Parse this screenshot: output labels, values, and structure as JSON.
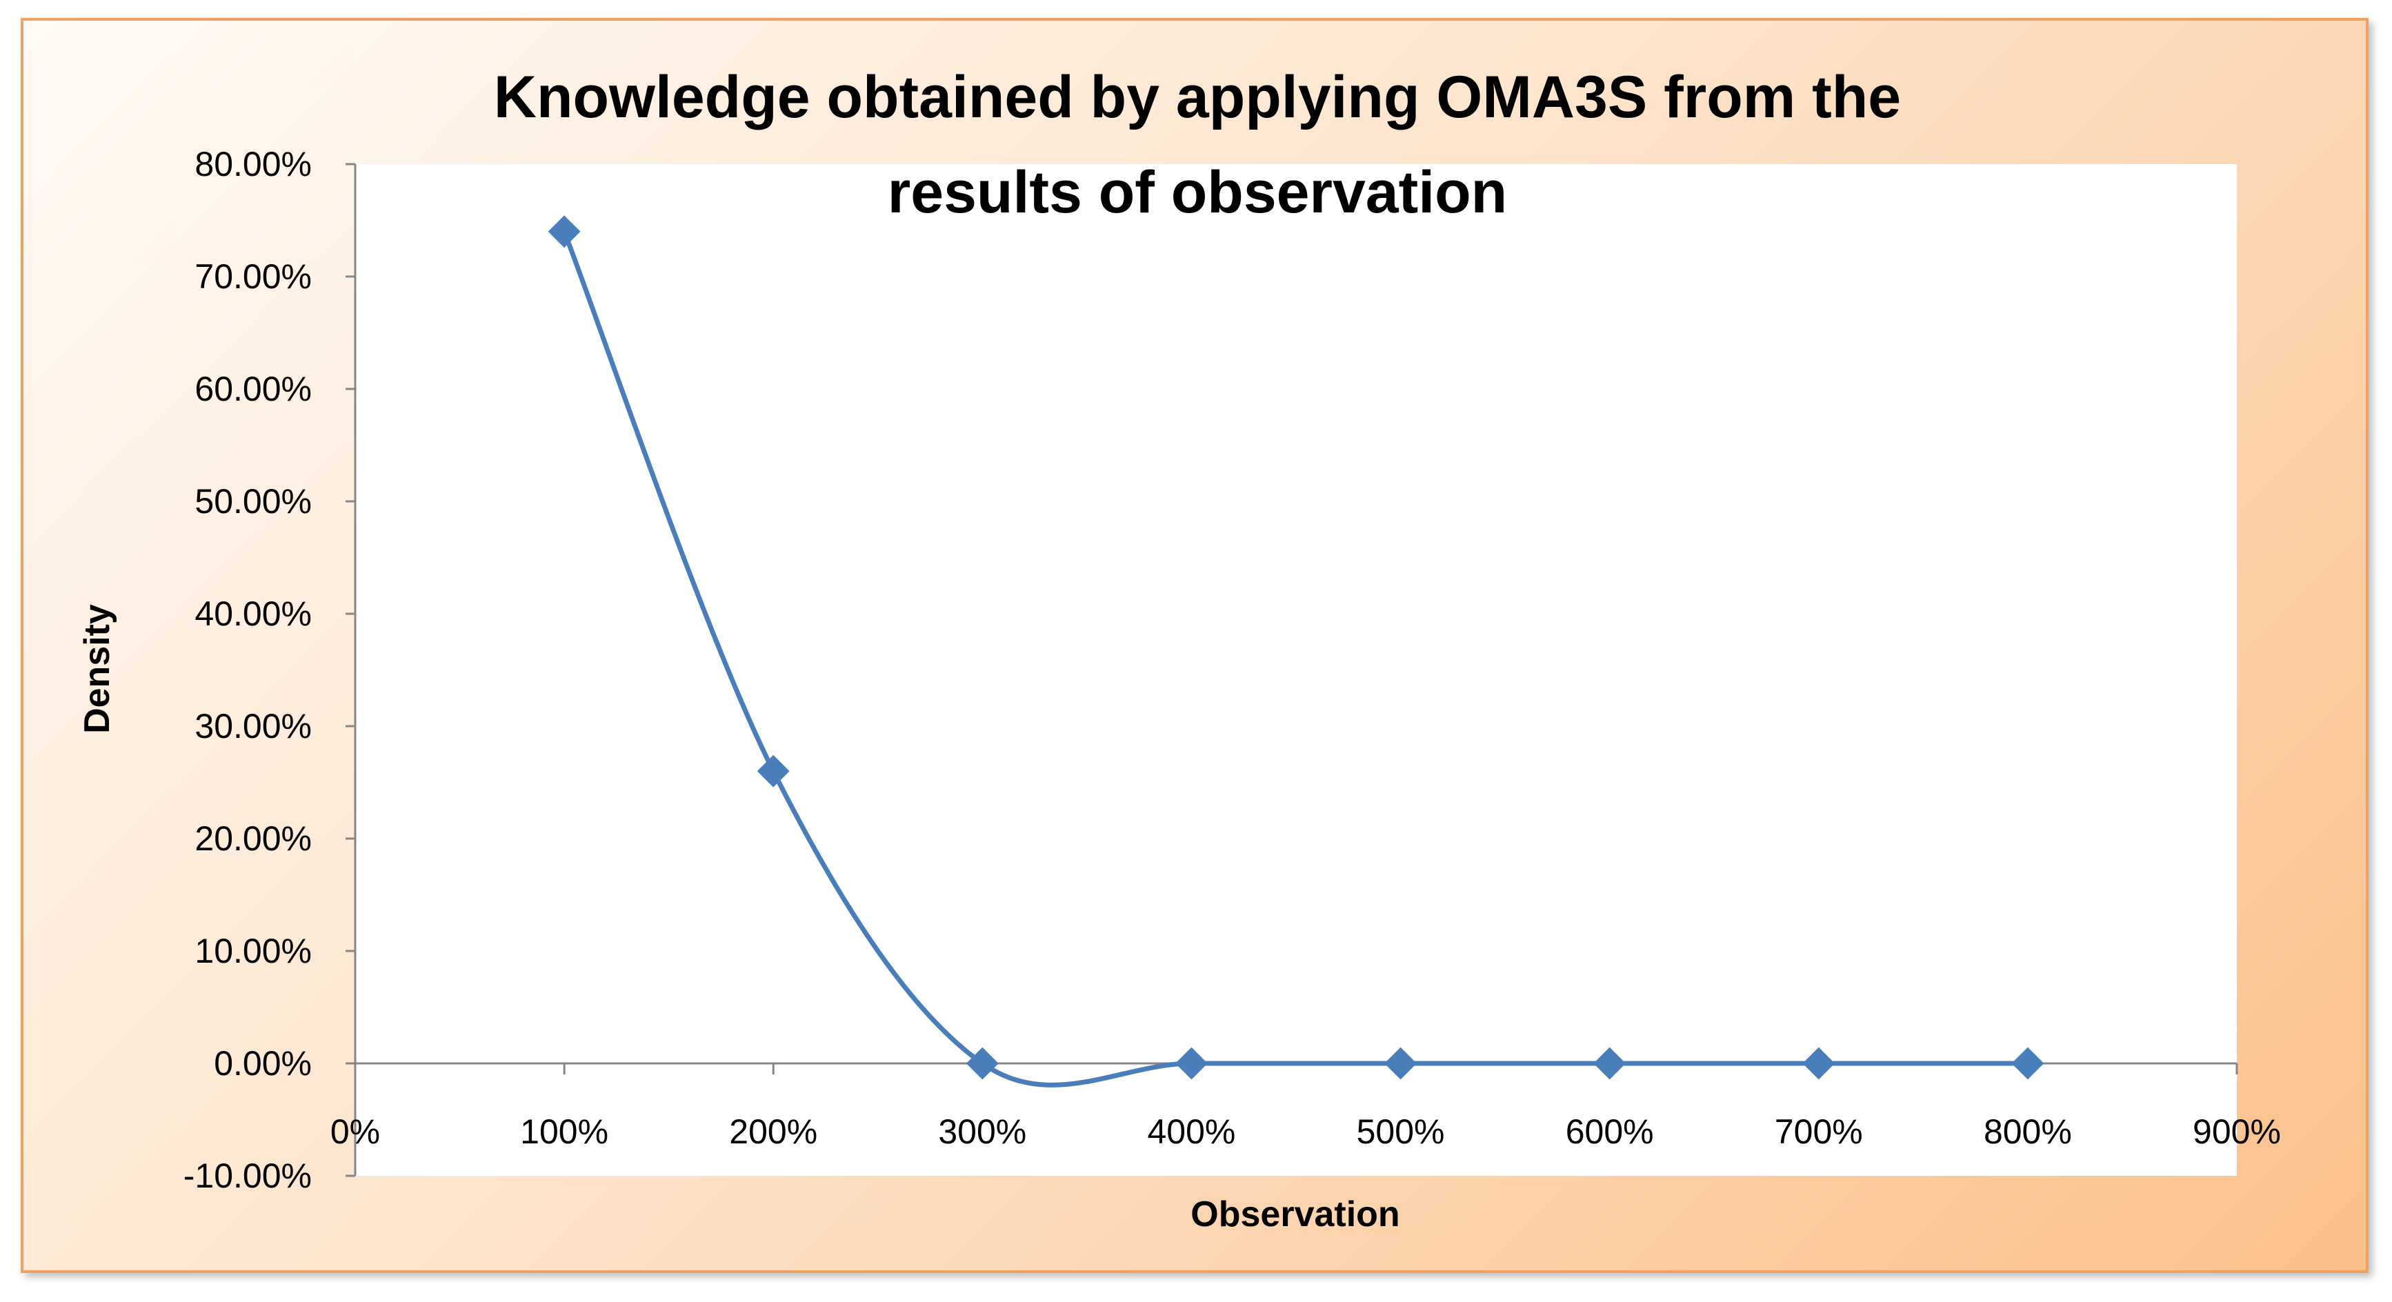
{
  "chart_data": {
    "type": "line",
    "smoothed": true,
    "title_lines": [
      "Knowledge obtained by applying OMA3S from the",
      "results of observation"
    ],
    "xlabel": "Observation",
    "ylabel": "Density",
    "xlim": [
      0,
      900
    ],
    "ylim": [
      -10,
      80
    ],
    "x_ticks": [
      0,
      100,
      200,
      300,
      400,
      500,
      600,
      700,
      800,
      900
    ],
    "x_tick_labels": [
      "0%",
      "100%",
      "200%",
      "300%",
      "400%",
      "500%",
      "600%",
      "700%",
      "800%",
      "900%"
    ],
    "y_ticks": [
      80,
      70,
      60,
      50,
      40,
      30,
      20,
      10,
      0,
      -10
    ],
    "y_tick_labels": [
      "80.00%",
      "70.00%",
      "60.00%",
      "50.00%",
      "40.00%",
      "30.00%",
      "20.00%",
      "10.00%",
      "0.00%",
      "-10.00%"
    ],
    "series": [
      {
        "name": "Density",
        "x": [
          100,
          200,
          300,
          400,
          500,
          600,
          700,
          800
        ],
        "y": [
          74,
          26,
          0,
          0,
          0,
          0,
          0,
          0
        ]
      }
    ],
    "legend": "none",
    "grid": false
  },
  "colors": {
    "line": "#4a7ebb",
    "marker": "#4a7ebb",
    "axis": "#868686",
    "plot_bg": "#ffffff"
  }
}
